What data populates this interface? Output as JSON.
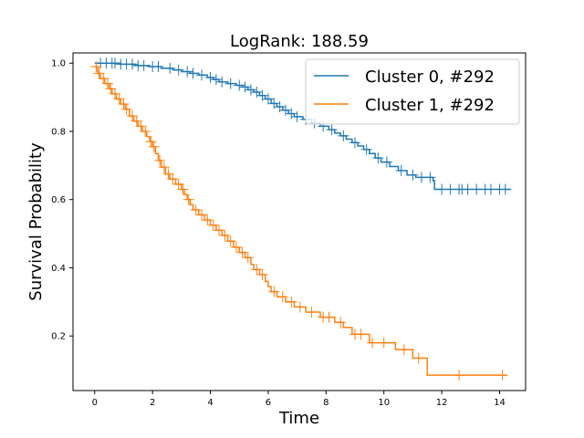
{
  "chart_data": {
    "type": "line",
    "subtype": "kaplan-meier",
    "title": "LogRank: 188.59",
    "xlabel": "Time",
    "ylabel": "Survival Probability",
    "xlim": [
      -0.75,
      14.9
    ],
    "ylim": [
      0.04,
      1.03
    ],
    "xticks": [
      0,
      2,
      4,
      6,
      8,
      10,
      12,
      14
    ],
    "yticks": [
      0.2,
      0.4,
      0.6,
      0.8,
      1.0
    ],
    "xtick_labels": [
      "0",
      "2",
      "4",
      "6",
      "8",
      "10",
      "12",
      "14"
    ],
    "ytick_labels": [
      "0.2",
      "0.4",
      "0.6",
      "0.8",
      "1.0"
    ],
    "legend_position": "top-right",
    "series": [
      {
        "name": "Cluster 0, #292",
        "color": "#1f77b4",
        "steps": [
          [
            0,
            1.0
          ],
          [
            0.9,
            0.997
          ],
          [
            1.4,
            0.993
          ],
          [
            1.9,
            0.99
          ],
          [
            2.3,
            0.985
          ],
          [
            2.7,
            0.98
          ],
          [
            3.0,
            0.975
          ],
          [
            3.3,
            0.97
          ],
          [
            3.6,
            0.965
          ],
          [
            3.9,
            0.958
          ],
          [
            4.1,
            0.952
          ],
          [
            4.3,
            0.945
          ],
          [
            4.6,
            0.94
          ],
          [
            4.9,
            0.935
          ],
          [
            5.1,
            0.93
          ],
          [
            5.3,
            0.922
          ],
          [
            5.5,
            0.915
          ],
          [
            5.7,
            0.905
          ],
          [
            5.9,
            0.895
          ],
          [
            6.1,
            0.882
          ],
          [
            6.3,
            0.872
          ],
          [
            6.5,
            0.862
          ],
          [
            6.7,
            0.852
          ],
          [
            6.9,
            0.843
          ],
          [
            7.2,
            0.835
          ],
          [
            7.5,
            0.825
          ],
          [
            7.8,
            0.815
          ],
          [
            8.1,
            0.805
          ],
          [
            8.3,
            0.795
          ],
          [
            8.5,
            0.787
          ],
          [
            8.7,
            0.777
          ],
          [
            8.9,
            0.767
          ],
          [
            9.1,
            0.757
          ],
          [
            9.3,
            0.747
          ],
          [
            9.5,
            0.735
          ],
          [
            9.7,
            0.722
          ],
          [
            9.9,
            0.71
          ],
          [
            10.2,
            0.697
          ],
          [
            10.5,
            0.685
          ],
          [
            10.8,
            0.672
          ],
          [
            11.1,
            0.665
          ],
          [
            11.7,
            0.655
          ],
          [
            11.75,
            0.63
          ],
          [
            14.4,
            0.63
          ]
        ],
        "censored_times": [
          0.2,
          0.4,
          0.6,
          0.7,
          0.9,
          1.1,
          1.3,
          1.5,
          1.7,
          2.0,
          2.2,
          2.6,
          2.9,
          3.2,
          3.4,
          3.7,
          4.0,
          4.2,
          4.4,
          4.7,
          5.0,
          5.2,
          5.4,
          5.6,
          5.8,
          6.0,
          6.2,
          6.4,
          6.6,
          6.8,
          7.0,
          7.3,
          7.6,
          7.9,
          8.2,
          8.6,
          9.0,
          9.4,
          9.8,
          10.1,
          10.6,
          11.0,
          11.3,
          11.6,
          12.0,
          12.3,
          12.6,
          12.7,
          12.9,
          13.2,
          13.5,
          13.7,
          14.0,
          14.2
        ]
      },
      {
        "name": "Cluster 1, #292",
        "color": "#ff7f0e",
        "steps": [
          [
            0,
            0.99
          ],
          [
            0.1,
            0.97
          ],
          [
            0.2,
            0.955
          ],
          [
            0.35,
            0.94
          ],
          [
            0.5,
            0.925
          ],
          [
            0.6,
            0.91
          ],
          [
            0.75,
            0.895
          ],
          [
            0.9,
            0.88
          ],
          [
            1.05,
            0.865
          ],
          [
            1.2,
            0.845
          ],
          [
            1.35,
            0.83
          ],
          [
            1.5,
            0.815
          ],
          [
            1.65,
            0.8
          ],
          [
            1.8,
            0.785
          ],
          [
            1.9,
            0.77
          ],
          [
            2.0,
            0.755
          ],
          [
            2.1,
            0.735
          ],
          [
            2.2,
            0.715
          ],
          [
            2.3,
            0.695
          ],
          [
            2.45,
            0.675
          ],
          [
            2.6,
            0.66
          ],
          [
            2.8,
            0.645
          ],
          [
            3.0,
            0.63
          ],
          [
            3.1,
            0.615
          ],
          [
            3.2,
            0.6
          ],
          [
            3.3,
            0.585
          ],
          [
            3.4,
            0.57
          ],
          [
            3.6,
            0.555
          ],
          [
            3.8,
            0.54
          ],
          [
            4.0,
            0.525
          ],
          [
            4.2,
            0.51
          ],
          [
            4.4,
            0.495
          ],
          [
            4.6,
            0.478
          ],
          [
            4.8,
            0.46
          ],
          [
            5.0,
            0.445
          ],
          [
            5.2,
            0.43
          ],
          [
            5.4,
            0.41
          ],
          [
            5.5,
            0.395
          ],
          [
            5.7,
            0.38
          ],
          [
            5.9,
            0.36
          ],
          [
            6.0,
            0.345
          ],
          [
            6.1,
            0.33
          ],
          [
            6.3,
            0.315
          ],
          [
            6.6,
            0.3
          ],
          [
            6.9,
            0.285
          ],
          [
            7.3,
            0.27
          ],
          [
            7.8,
            0.255
          ],
          [
            8.3,
            0.24
          ],
          [
            8.6,
            0.225
          ],
          [
            8.9,
            0.205
          ],
          [
            9.5,
            0.18
          ],
          [
            10.4,
            0.16
          ],
          [
            11.0,
            0.135
          ],
          [
            11.5,
            0.085
          ],
          [
            14.25,
            0.085
          ]
        ],
        "censored_times": [
          0.05,
          0.15,
          0.3,
          0.45,
          0.55,
          0.7,
          0.85,
          1.0,
          1.1,
          1.3,
          1.45,
          1.6,
          1.75,
          1.95,
          2.05,
          2.25,
          2.4,
          2.55,
          2.7,
          2.9,
          3.05,
          3.25,
          3.5,
          3.7,
          3.9,
          4.1,
          4.3,
          4.5,
          4.7,
          4.9,
          5.1,
          5.3,
          5.6,
          5.8,
          6.2,
          6.5,
          6.8,
          7.1,
          7.5,
          7.9,
          8.1,
          8.5,
          9.0,
          9.2,
          9.6,
          10.0,
          10.7,
          11.2,
          12.6,
          14.1
        ]
      }
    ]
  }
}
